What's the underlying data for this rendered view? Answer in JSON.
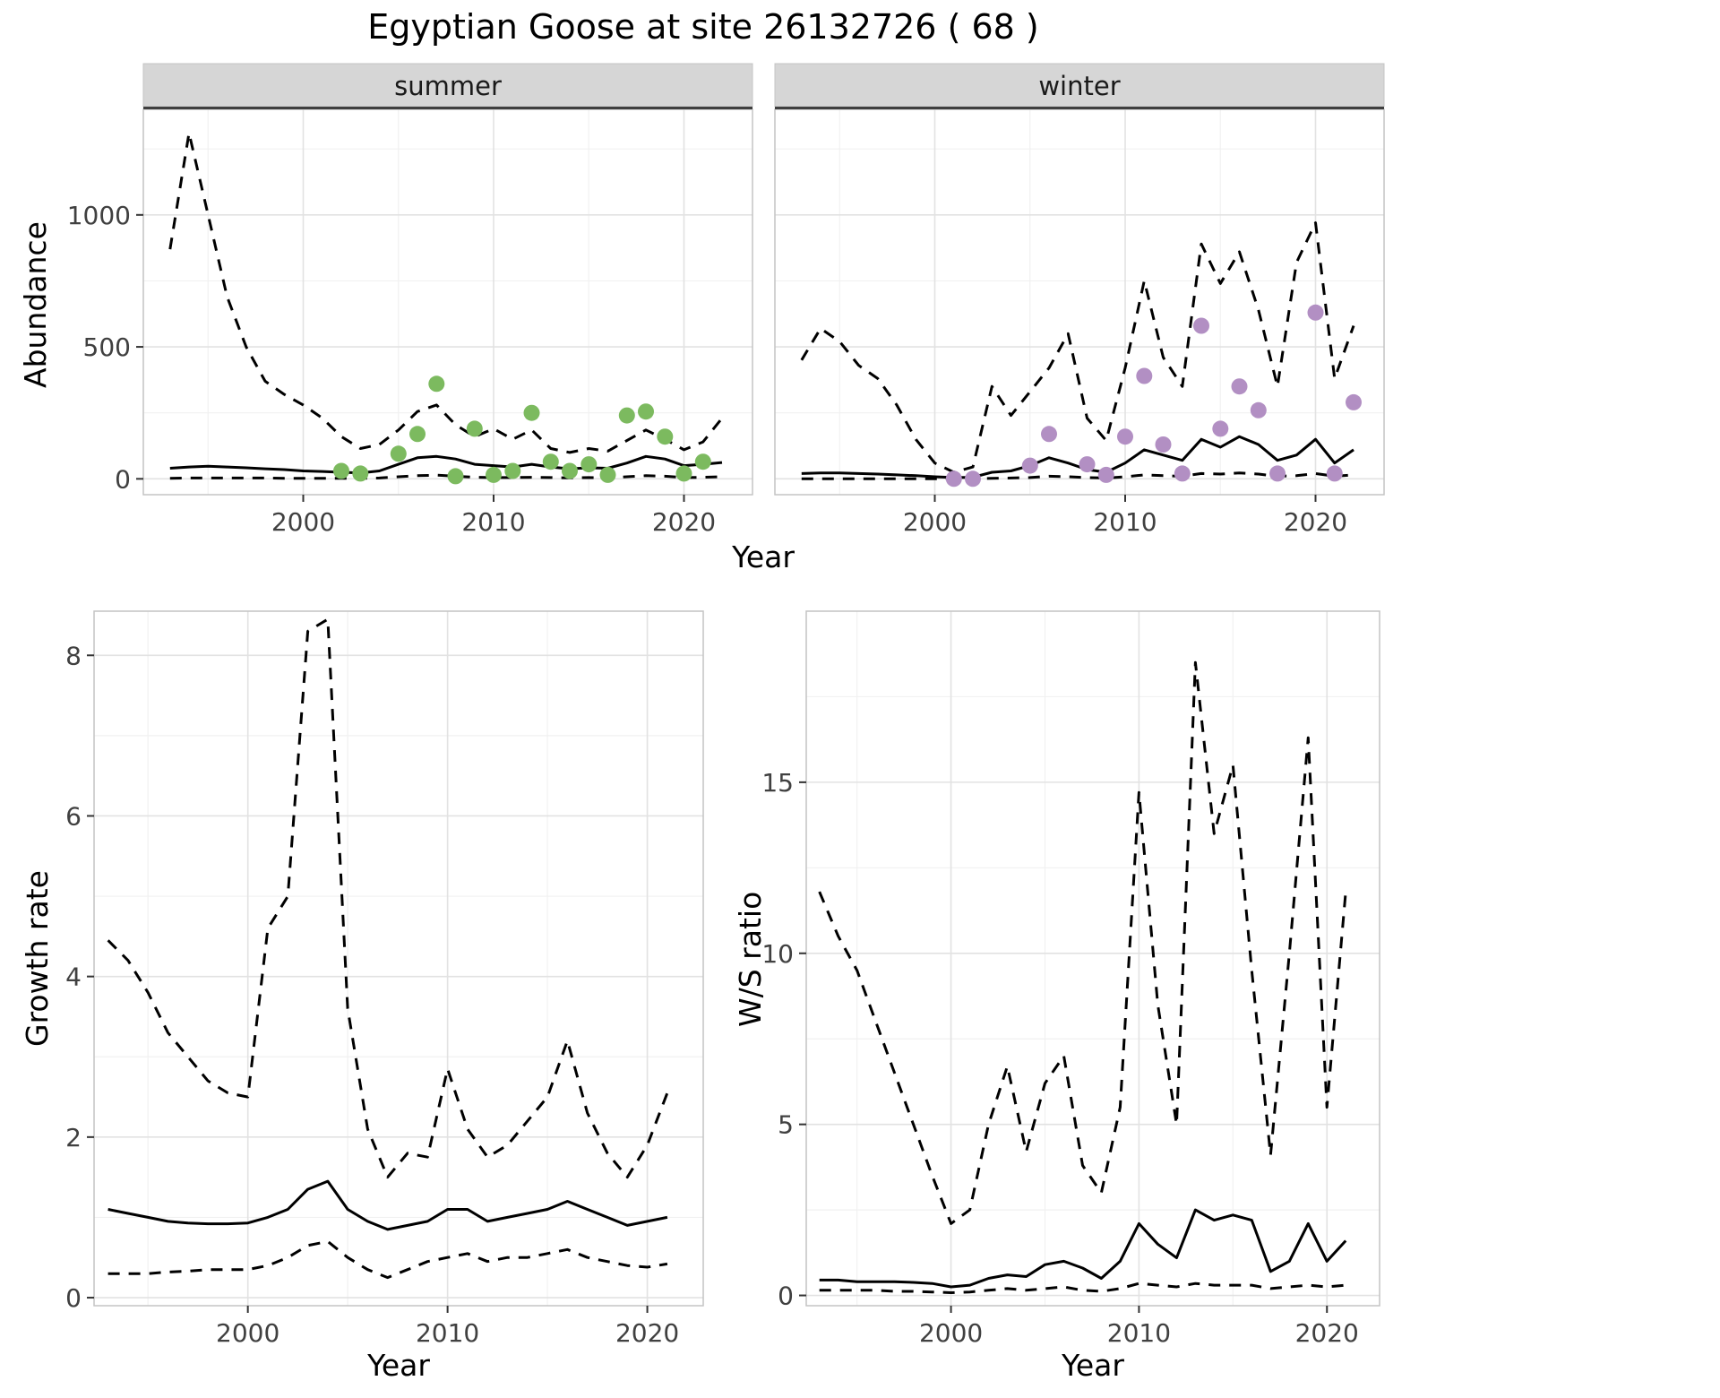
{
  "title": "Egyptian Goose at site 26132726 ( 68 )",
  "labels": {
    "abundance": "Abundance",
    "growth": "Growth rate",
    "ws": "W/S ratio",
    "year": "Year"
  },
  "theme": {
    "panel_bg": "#ffffff",
    "strip_bg": "#d6d6d6",
    "strip_border": "#3f3f3f",
    "grid_major": "#e2e2e2",
    "grid_minor": "#f1f1f1",
    "panel_border": "#c4c4c4",
    "line": "#000000",
    "tick": "#333333",
    "summer_point": "#7cba5f",
    "winter_point": "#b28fc3"
  },
  "chart_data": [
    {
      "id": "abundance_summer",
      "type": "line",
      "facet": "summer",
      "ylabel": "Abundance",
      "xlabel": "Year",
      "xlim": [
        1991.6,
        2023.6
      ],
      "ylim": [
        -60,
        1400
      ],
      "xticks": [
        2000,
        2010,
        2020
      ],
      "yticks": [
        0,
        500,
        1000
      ],
      "x": [
        1993,
        1994,
        1995,
        1996,
        1997,
        1998,
        1999,
        2000,
        2001,
        2002,
        2003,
        2004,
        2005,
        2006,
        2007,
        2008,
        2009,
        2010,
        2011,
        2012,
        2013,
        2014,
        2015,
        2016,
        2017,
        2018,
        2019,
        2020,
        2021,
        2022
      ],
      "series": [
        {
          "name": "upper_ci",
          "style": "dashed",
          "y": [
            870,
            1310,
            1000,
            690,
            500,
            370,
            320,
            280,
            230,
            160,
            115,
            130,
            185,
            255,
            280,
            205,
            160,
            190,
            150,
            185,
            115,
            100,
            115,
            105,
            145,
            185,
            150,
            110,
            140,
            230
          ]
        },
        {
          "name": "mean",
          "style": "solid",
          "y": [
            40,
            45,
            48,
            45,
            42,
            38,
            35,
            30,
            28,
            25,
            22,
            30,
            55,
            80,
            85,
            75,
            55,
            50,
            45,
            55,
            45,
            38,
            42,
            40,
            60,
            85,
            75,
            50,
            55,
            62
          ]
        },
        {
          "name": "lower_ci",
          "style": "dashed",
          "y": [
            2,
            3,
            3,
            3,
            3,
            3,
            2,
            2,
            2,
            2,
            2,
            3,
            8,
            12,
            14,
            10,
            6,
            5,
            5,
            6,
            5,
            4,
            5,
            4,
            8,
            12,
            10,
            5,
            6,
            8
          ]
        },
        {
          "name": "summer_observations",
          "style": "points",
          "color": "#7cba5f",
          "x": [
            2002,
            2003,
            2005,
            2006,
            2007,
            2008,
            2009,
            2010,
            2011,
            2012,
            2013,
            2014,
            2015,
            2016,
            2017,
            2018,
            2019,
            2020,
            2021
          ],
          "y": [
            30,
            20,
            95,
            170,
            360,
            10,
            190,
            15,
            30,
            250,
            65,
            30,
            55,
            15,
            240,
            255,
            160,
            20,
            65
          ]
        }
      ]
    },
    {
      "id": "abundance_winter",
      "type": "line",
      "facet": "winter",
      "ylabel": "Abundance",
      "xlabel": "Year",
      "xlim": [
        1991.6,
        2023.6
      ],
      "ylim": [
        -60,
        1400
      ],
      "xticks": [
        2000,
        2010,
        2020
      ],
      "yticks": [
        0,
        500,
        1000
      ],
      "x": [
        1993,
        1994,
        1995,
        1996,
        1997,
        1998,
        1999,
        2000,
        2001,
        2002,
        2003,
        2004,
        2005,
        2006,
        2007,
        2008,
        2009,
        2010,
        2011,
        2012,
        2013,
        2014,
        2015,
        2016,
        2017,
        2018,
        2019,
        2020,
        2021,
        2022
      ],
      "series": [
        {
          "name": "upper_ci",
          "style": "dashed",
          "y": [
            450,
            570,
            520,
            430,
            380,
            280,
            150,
            60,
            25,
            45,
            350,
            240,
            330,
            420,
            550,
            230,
            145,
            420,
            750,
            460,
            350,
            890,
            740,
            860,
            640,
            350,
            820,
            970,
            380,
            580
          ]
        },
        {
          "name": "mean",
          "style": "solid",
          "y": [
            20,
            22,
            22,
            20,
            18,
            15,
            12,
            8,
            5,
            6,
            25,
            30,
            50,
            80,
            60,
            35,
            25,
            60,
            110,
            90,
            70,
            150,
            120,
            160,
            130,
            70,
            90,
            150,
            60,
            110
          ]
        },
        {
          "name": "lower_ci",
          "style": "dashed",
          "y": [
            0,
            0,
            0,
            0,
            0,
            0,
            0,
            0,
            0,
            0,
            2,
            3,
            5,
            10,
            8,
            5,
            3,
            8,
            15,
            12,
            10,
            20,
            18,
            22,
            18,
            10,
            12,
            20,
            10,
            15
          ]
        },
        {
          "name": "winter_observations",
          "style": "points",
          "color": "#b28fc3",
          "x": [
            2001,
            2002,
            2005,
            2006,
            2008,
            2009,
            2010,
            2011,
            2012,
            2013,
            2014,
            2015,
            2016,
            2017,
            2018,
            2020,
            2021,
            2022
          ],
          "y": [
            0,
            0,
            50,
            170,
            55,
            15,
            160,
            390,
            130,
            20,
            580,
            190,
            350,
            260,
            20,
            630,
            20,
            290
          ]
        }
      ]
    },
    {
      "id": "growth_rate",
      "type": "line",
      "ylabel": "Growth rate",
      "xlabel": "Year",
      "xlim": [
        1992.3,
        2022.8
      ],
      "ylim": [
        -0.1,
        8.55
      ],
      "xticks": [
        2000,
        2010,
        2020
      ],
      "yticks": [
        0,
        2,
        4,
        6,
        8
      ],
      "x": [
        1993,
        1994,
        1995,
        1996,
        1997,
        1998,
        1999,
        2000,
        2001,
        2002,
        2003,
        2004,
        2005,
        2006,
        2007,
        2008,
        2009,
        2010,
        2011,
        2012,
        2013,
        2014,
        2015,
        2016,
        2017,
        2018,
        2019,
        2020,
        2021
      ],
      "series": [
        {
          "name": "upper_ci",
          "style": "dashed",
          "y": [
            4.45,
            4.2,
            3.8,
            3.3,
            3.0,
            2.7,
            2.55,
            2.5,
            4.6,
            5.0,
            8.3,
            8.45,
            3.6,
            2.1,
            1.5,
            1.8,
            1.75,
            2.85,
            2.1,
            1.75,
            1.9,
            2.2,
            2.5,
            3.2,
            2.3,
            1.8,
            1.5,
            1.9,
            2.55
          ]
        },
        {
          "name": "mean",
          "style": "solid",
          "y": [
            1.1,
            1.05,
            1.0,
            0.95,
            0.93,
            0.92,
            0.92,
            0.93,
            1.0,
            1.1,
            1.35,
            1.45,
            1.1,
            0.95,
            0.85,
            0.9,
            0.95,
            1.1,
            1.1,
            0.95,
            1.0,
            1.05,
            1.1,
            1.2,
            1.1,
            1.0,
            0.9,
            0.95,
            1.0
          ]
        },
        {
          "name": "lower_ci",
          "style": "dashed",
          "y": [
            0.3,
            0.3,
            0.3,
            0.32,
            0.33,
            0.35,
            0.35,
            0.35,
            0.4,
            0.5,
            0.65,
            0.7,
            0.5,
            0.35,
            0.25,
            0.35,
            0.45,
            0.5,
            0.55,
            0.45,
            0.5,
            0.5,
            0.55,
            0.6,
            0.5,
            0.45,
            0.4,
            0.38,
            0.42
          ]
        }
      ]
    },
    {
      "id": "ws_ratio",
      "type": "line",
      "ylabel": "W/S ratio",
      "xlabel": "Year",
      "xlim": [
        1992.3,
        2022.8
      ],
      "ylim": [
        -0.3,
        20.0
      ],
      "xticks": [
        2000,
        2010,
        2020
      ],
      "yticks": [
        0,
        5,
        10,
        15
      ],
      "x": [
        1993,
        1994,
        1995,
        1996,
        1997,
        1998,
        1999,
        2000,
        2001,
        2002,
        2003,
        2004,
        2005,
        2006,
        2007,
        2008,
        2009,
        2010,
        2011,
        2012,
        2013,
        2014,
        2015,
        2016,
        2017,
        2018,
        2019,
        2020,
        2021
      ],
      "series": [
        {
          "name": "upper_ci",
          "style": "dashed",
          "y": [
            11.8,
            10.5,
            9.5,
            8.0,
            6.5,
            5.0,
            3.5,
            2.1,
            2.5,
            5.0,
            6.7,
            4.2,
            6.2,
            7.0,
            3.8,
            3.0,
            5.5,
            14.7,
            8.5,
            5.0,
            18.5,
            13.5,
            15.5,
            9.5,
            4.1,
            10.0,
            16.3,
            5.5,
            11.8
          ]
        },
        {
          "name": "mean",
          "style": "solid",
          "y": [
            0.45,
            0.45,
            0.4,
            0.4,
            0.4,
            0.38,
            0.35,
            0.25,
            0.3,
            0.5,
            0.6,
            0.55,
            0.9,
            1.0,
            0.8,
            0.5,
            1.0,
            2.1,
            1.5,
            1.1,
            2.5,
            2.2,
            2.35,
            2.2,
            0.7,
            1.0,
            2.1,
            1.0,
            1.6
          ]
        },
        {
          "name": "lower_ci",
          "style": "dashed",
          "y": [
            0.15,
            0.15,
            0.15,
            0.15,
            0.12,
            0.12,
            0.1,
            0.08,
            0.1,
            0.15,
            0.2,
            0.15,
            0.2,
            0.25,
            0.15,
            0.12,
            0.2,
            0.35,
            0.3,
            0.25,
            0.35,
            0.3,
            0.3,
            0.3,
            0.2,
            0.25,
            0.3,
            0.25,
            0.3
          ]
        }
      ]
    }
  ]
}
